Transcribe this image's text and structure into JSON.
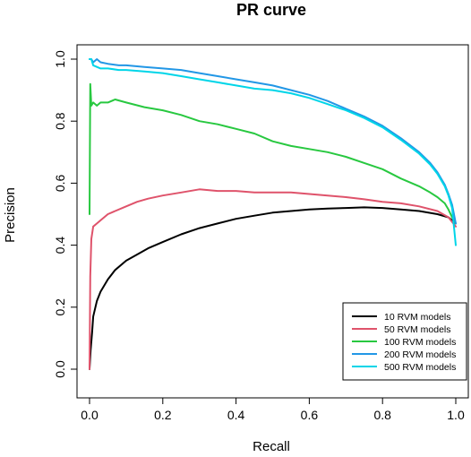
{
  "chart_data": {
    "type": "line",
    "title": "PR curve",
    "xlabel": "Recall",
    "ylabel": "Precision",
    "xlim": [
      0,
      1
    ],
    "ylim": [
      0,
      1
    ],
    "x_ticks": [
      0.0,
      0.2,
      0.4,
      0.6,
      0.8,
      1.0
    ],
    "y_ticks": [
      0.0,
      0.2,
      0.4,
      0.6,
      0.8,
      1.0
    ],
    "x_tick_labels": [
      "0.0",
      "0.2",
      "0.4",
      "0.6",
      "0.8",
      "1.0"
    ],
    "y_tick_labels": [
      "0.0",
      "0.2",
      "0.4",
      "0.6",
      "0.8",
      "1.0"
    ],
    "grid": false,
    "legend_position": "bottom-right",
    "series": [
      {
        "name": "10 RVM models",
        "color": "#000000",
        "x": [
          0.0,
          0.003,
          0.007,
          0.01,
          0.02,
          0.03,
          0.05,
          0.07,
          0.1,
          0.13,
          0.16,
          0.2,
          0.25,
          0.3,
          0.35,
          0.4,
          0.45,
          0.5,
          0.55,
          0.6,
          0.65,
          0.7,
          0.75,
          0.8,
          0.85,
          0.9,
          0.95,
          0.98,
          1.0
        ],
        "y": [
          0.0,
          0.06,
          0.12,
          0.17,
          0.22,
          0.25,
          0.29,
          0.32,
          0.35,
          0.37,
          0.39,
          0.41,
          0.435,
          0.455,
          0.47,
          0.485,
          0.495,
          0.505,
          0.51,
          0.515,
          0.518,
          0.52,
          0.522,
          0.52,
          0.515,
          0.51,
          0.5,
          0.49,
          0.47
        ]
      },
      {
        "name": "50 RVM models",
        "color": "#DF536B",
        "x": [
          0.0,
          0.002,
          0.005,
          0.01,
          0.02,
          0.03,
          0.05,
          0.07,
          0.1,
          0.13,
          0.16,
          0.2,
          0.25,
          0.3,
          0.35,
          0.4,
          0.45,
          0.5,
          0.55,
          0.6,
          0.65,
          0.7,
          0.75,
          0.8,
          0.85,
          0.9,
          0.95,
          0.98,
          1.0
        ],
        "y": [
          0.0,
          0.3,
          0.42,
          0.46,
          0.47,
          0.48,
          0.5,
          0.51,
          0.525,
          0.54,
          0.55,
          0.56,
          0.57,
          0.58,
          0.575,
          0.575,
          0.57,
          0.57,
          0.57,
          0.565,
          0.56,
          0.555,
          0.548,
          0.54,
          0.535,
          0.525,
          0.51,
          0.49,
          0.46
        ]
      },
      {
        "name": "100 RVM models",
        "color": "#28C840",
        "x": [
          0.0,
          0.002,
          0.005,
          0.01,
          0.02,
          0.03,
          0.05,
          0.07,
          0.1,
          0.15,
          0.2,
          0.25,
          0.3,
          0.35,
          0.4,
          0.45,
          0.5,
          0.55,
          0.6,
          0.65,
          0.7,
          0.75,
          0.8,
          0.85,
          0.9,
          0.93,
          0.95,
          0.97,
          0.98,
          0.99,
          1.0
        ],
        "y": [
          0.5,
          0.92,
          0.85,
          0.86,
          0.85,
          0.86,
          0.86,
          0.87,
          0.86,
          0.845,
          0.835,
          0.82,
          0.8,
          0.79,
          0.775,
          0.76,
          0.735,
          0.72,
          0.71,
          0.7,
          0.685,
          0.665,
          0.645,
          0.615,
          0.59,
          0.57,
          0.555,
          0.535,
          0.515,
          0.49,
          0.47
        ]
      },
      {
        "name": "200 RVM models",
        "color": "#2297E6",
        "x": [
          0.0,
          0.005,
          0.01,
          0.02,
          0.03,
          0.05,
          0.08,
          0.1,
          0.15,
          0.2,
          0.25,
          0.3,
          0.35,
          0.4,
          0.45,
          0.5,
          0.55,
          0.6,
          0.65,
          0.7,
          0.75,
          0.8,
          0.85,
          0.9,
          0.93,
          0.95,
          0.97,
          0.98,
          0.99,
          1.0
        ],
        "y": [
          1.0,
          1.0,
          0.99,
          1.0,
          0.99,
          0.985,
          0.98,
          0.98,
          0.975,
          0.97,
          0.965,
          0.955,
          0.945,
          0.935,
          0.925,
          0.915,
          0.9,
          0.885,
          0.865,
          0.84,
          0.815,
          0.785,
          0.745,
          0.7,
          0.665,
          0.635,
          0.595,
          0.565,
          0.53,
          0.47
        ]
      },
      {
        "name": "500 RVM models",
        "color": "#00D5E8",
        "x": [
          0.0,
          0.005,
          0.01,
          0.02,
          0.03,
          0.05,
          0.08,
          0.1,
          0.15,
          0.2,
          0.25,
          0.3,
          0.35,
          0.4,
          0.45,
          0.5,
          0.55,
          0.6,
          0.65,
          0.7,
          0.75,
          0.8,
          0.85,
          0.9,
          0.93,
          0.95,
          0.97,
          0.98,
          0.99,
          1.0
        ],
        "y": [
          1.0,
          1.0,
          0.98,
          0.975,
          0.97,
          0.97,
          0.965,
          0.965,
          0.96,
          0.955,
          0.945,
          0.935,
          0.925,
          0.915,
          0.905,
          0.9,
          0.89,
          0.875,
          0.855,
          0.835,
          0.81,
          0.78,
          0.74,
          0.695,
          0.66,
          0.63,
          0.59,
          0.56,
          0.52,
          0.4
        ]
      }
    ]
  }
}
